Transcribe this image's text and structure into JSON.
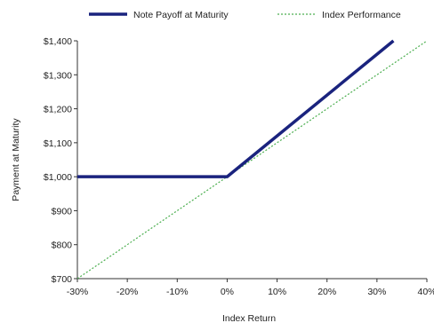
{
  "chart_data": {
    "type": "line",
    "xlabel": "Index Return",
    "ylabel": "Payment at Maturity",
    "xlim": [
      -30,
      40
    ],
    "ylim": [
      700,
      1400
    ],
    "x_ticks": [
      "-30%",
      "-20%",
      "-10%",
      "0%",
      "10%",
      "20%",
      "30%",
      "40%"
    ],
    "y_ticks": [
      "$700",
      "$800",
      "$900",
      "$1,000",
      "$1,100",
      "$1,200",
      "$1,300",
      "$1,400"
    ],
    "x_tick_values": [
      -30,
      -20,
      -10,
      0,
      10,
      20,
      30,
      40
    ],
    "y_tick_values": [
      700,
      800,
      900,
      1000,
      1100,
      1200,
      1300,
      1400
    ],
    "grid": false,
    "legend_position": "top",
    "series": [
      {
        "name": "Note Payoff at Maturity",
        "color": "#1a237e",
        "style": "solid",
        "x": [
          -30,
          0,
          33.3
        ],
        "y": [
          1000,
          1000,
          1400
        ]
      },
      {
        "name": "Index Performance",
        "color": "#4caf50",
        "style": "dotted",
        "x": [
          -30,
          40
        ],
        "y": [
          700,
          1400
        ]
      }
    ]
  }
}
